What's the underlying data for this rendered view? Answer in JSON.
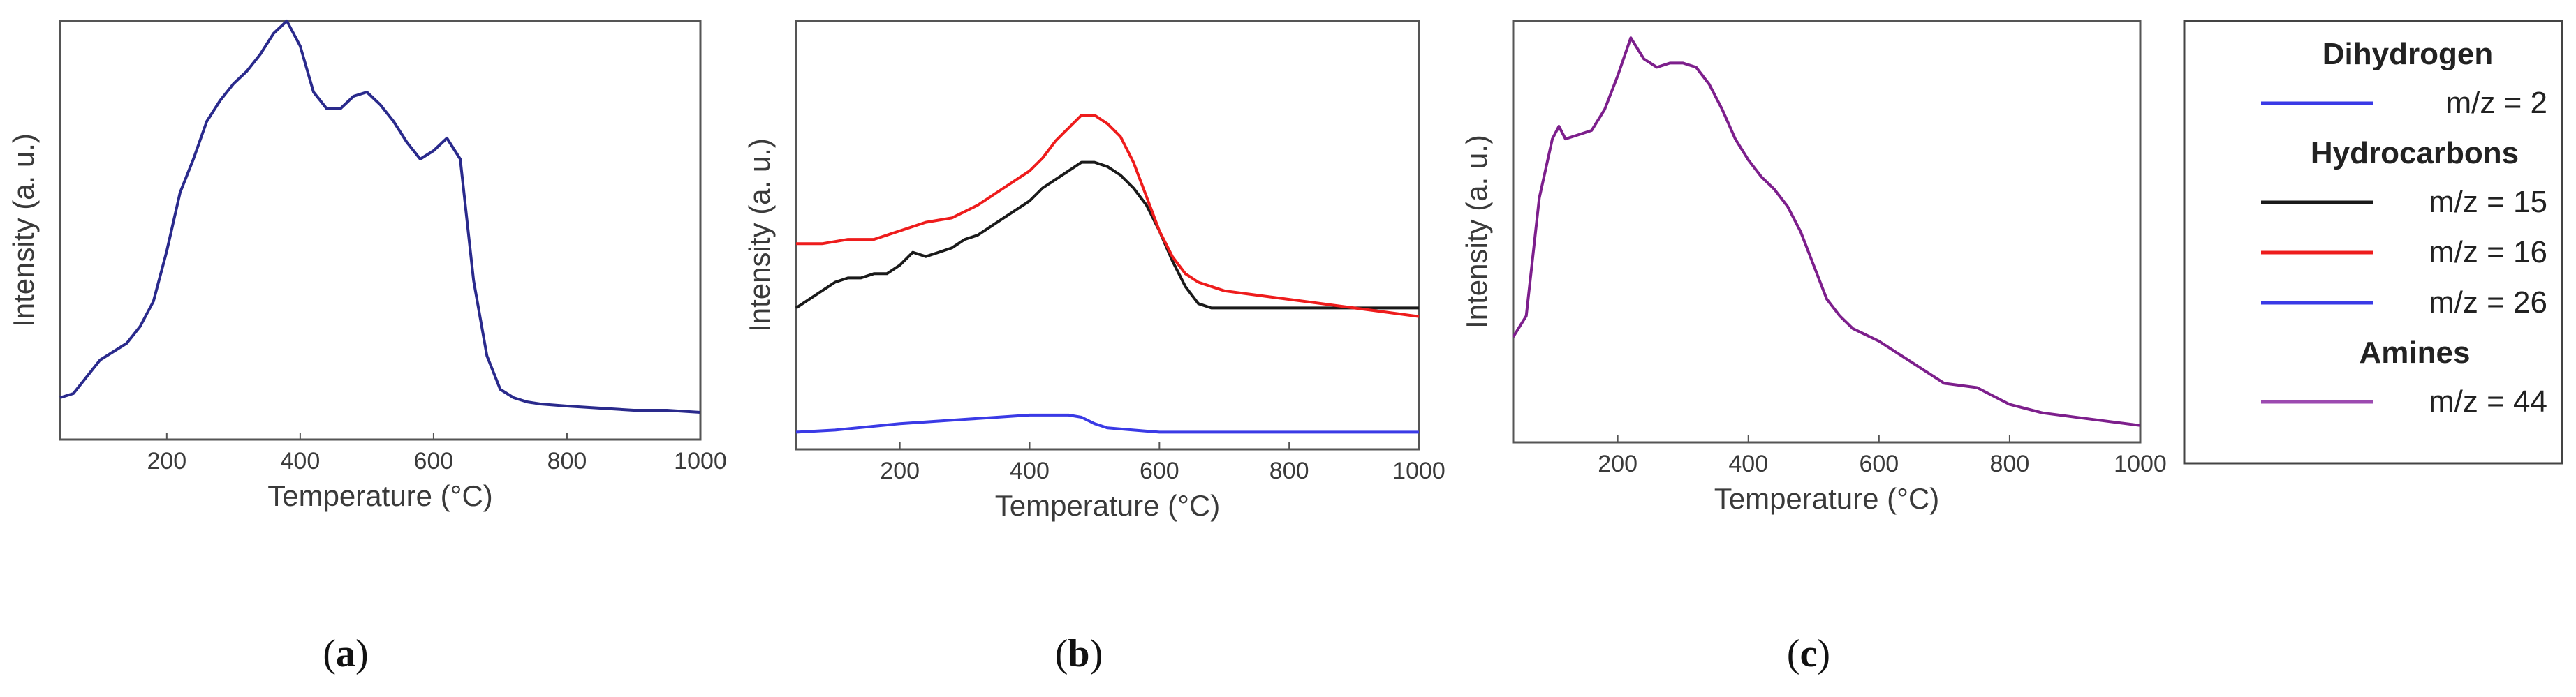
{
  "chart_data": [
    {
      "type": "line",
      "panel": "a",
      "caption_letter": "a",
      "xlabel": "Temperature (°C)",
      "ylabel": "Intensity (a. u.)",
      "xlim": [
        40,
        1000
      ],
      "ylim": [
        0,
        1
      ],
      "xticks": [
        "200",
        "400",
        "600",
        "800",
        "1000"
      ],
      "series": [
        {
          "name": "m/z = 2",
          "color": "#2a2a8c",
          "x": [
            40,
            60,
            80,
            100,
            120,
            140,
            160,
            180,
            200,
            220,
            240,
            260,
            280,
            300,
            320,
            340,
            360,
            380,
            400,
            420,
            440,
            460,
            480,
            500,
            520,
            540,
            560,
            580,
            600,
            620,
            640,
            660,
            680,
            700,
            720,
            740,
            760,
            800,
            850,
            900,
            950,
            1000
          ],
          "y": [
            0.1,
            0.11,
            0.15,
            0.19,
            0.21,
            0.23,
            0.27,
            0.33,
            0.45,
            0.59,
            0.67,
            0.76,
            0.81,
            0.85,
            0.88,
            0.92,
            0.97,
            1.0,
            0.94,
            0.83,
            0.79,
            0.79,
            0.82,
            0.83,
            0.8,
            0.76,
            0.71,
            0.67,
            0.69,
            0.72,
            0.67,
            0.38,
            0.2,
            0.12,
            0.1,
            0.09,
            0.085,
            0.08,
            0.075,
            0.07,
            0.07,
            0.065
          ]
        }
      ]
    },
    {
      "type": "line",
      "panel": "b",
      "caption_letter": "b",
      "xlabel": "Temperature (°C)",
      "ylabel": "Intensity (a. u.)",
      "xlim": [
        40,
        1000
      ],
      "ylim": [
        0,
        1
      ],
      "xticks": [
        "200",
        "400",
        "600",
        "800",
        "1000"
      ],
      "series": [
        {
          "name": "m/z = 15",
          "color": "#1a1a1a",
          "x": [
            40,
            60,
            80,
            100,
            120,
            140,
            160,
            180,
            200,
            220,
            240,
            260,
            280,
            300,
            320,
            340,
            360,
            380,
            400,
            420,
            440,
            460,
            480,
            500,
            520,
            540,
            560,
            580,
            600,
            620,
            640,
            660,
            680,
            700,
            750,
            800,
            850,
            900,
            950,
            1000
          ],
          "y": [
            0.33,
            0.35,
            0.37,
            0.39,
            0.4,
            0.4,
            0.41,
            0.41,
            0.43,
            0.46,
            0.45,
            0.46,
            0.47,
            0.49,
            0.5,
            0.52,
            0.54,
            0.56,
            0.58,
            0.61,
            0.63,
            0.65,
            0.67,
            0.67,
            0.66,
            0.64,
            0.61,
            0.57,
            0.51,
            0.44,
            0.38,
            0.34,
            0.33,
            0.33,
            0.33,
            0.33,
            0.33,
            0.33,
            0.33,
            0.33
          ]
        },
        {
          "name": "m/z = 16",
          "color": "#ee1c1c",
          "x": [
            40,
            80,
            120,
            160,
            200,
            240,
            280,
            320,
            360,
            400,
            420,
            440,
            460,
            480,
            500,
            520,
            540,
            560,
            580,
            600,
            620,
            640,
            660,
            680,
            700,
            750,
            800,
            850,
            900,
            950,
            1000
          ],
          "y": [
            0.48,
            0.48,
            0.49,
            0.49,
            0.51,
            0.53,
            0.54,
            0.57,
            0.61,
            0.65,
            0.68,
            0.72,
            0.75,
            0.78,
            0.78,
            0.76,
            0.73,
            0.67,
            0.59,
            0.51,
            0.45,
            0.41,
            0.39,
            0.38,
            0.37,
            0.36,
            0.35,
            0.34,
            0.33,
            0.32,
            0.31
          ]
        },
        {
          "name": "m/z = 26",
          "color": "#3a3ae6",
          "x": [
            40,
            100,
            200,
            300,
            350,
            400,
            440,
            460,
            480,
            500,
            520,
            560,
            600,
            700,
            800,
            900,
            1000
          ],
          "y": [
            0.04,
            0.045,
            0.06,
            0.07,
            0.075,
            0.08,
            0.08,
            0.08,
            0.075,
            0.06,
            0.05,
            0.045,
            0.04,
            0.04,
            0.04,
            0.04,
            0.04
          ]
        }
      ]
    },
    {
      "type": "line",
      "panel": "c",
      "caption_letter": "c",
      "xlabel": "Temperature (°C)",
      "ylabel": "Intensity (a. u.)",
      "xlim": [
        40,
        1000
      ],
      "ylim": [
        0,
        1
      ],
      "xticks": [
        "200",
        "400",
        "600",
        "800",
        "1000"
      ],
      "series": [
        {
          "name": "m/z = 44",
          "color": "#7d1f8c",
          "x": [
            40,
            60,
            80,
            100,
            110,
            120,
            140,
            160,
            180,
            200,
            220,
            240,
            260,
            280,
            300,
            320,
            340,
            360,
            380,
            400,
            420,
            440,
            460,
            480,
            500,
            520,
            540,
            560,
            600,
            650,
            700,
            750,
            800,
            850,
            900,
            950,
            1000
          ],
          "y": [
            0.25,
            0.3,
            0.58,
            0.72,
            0.75,
            0.72,
            0.73,
            0.74,
            0.79,
            0.87,
            0.96,
            0.91,
            0.89,
            0.9,
            0.9,
            0.89,
            0.85,
            0.79,
            0.72,
            0.67,
            0.63,
            0.6,
            0.56,
            0.5,
            0.42,
            0.34,
            0.3,
            0.27,
            0.24,
            0.19,
            0.14,
            0.13,
            0.09,
            0.07,
            0.06,
            0.05,
            0.04
          ]
        }
      ]
    }
  ],
  "legend": {
    "groups": [
      {
        "heading": "Dihydrogen",
        "items": [
          {
            "label": "m/z = 2",
            "color": "#3a3ae6"
          }
        ]
      },
      {
        "heading": "Hydrocarbons",
        "items": [
          {
            "label": "m/z = 15",
            "color": "#1a1a1a"
          },
          {
            "label": "m/z = 16",
            "color": "#ee1c1c"
          },
          {
            "label": "m/z = 26",
            "color": "#3a3ae6"
          }
        ]
      },
      {
        "heading": "Amines",
        "items": [
          {
            "label": "m/z = 44",
            "color": "#9c4ab0"
          }
        ]
      }
    ]
  }
}
